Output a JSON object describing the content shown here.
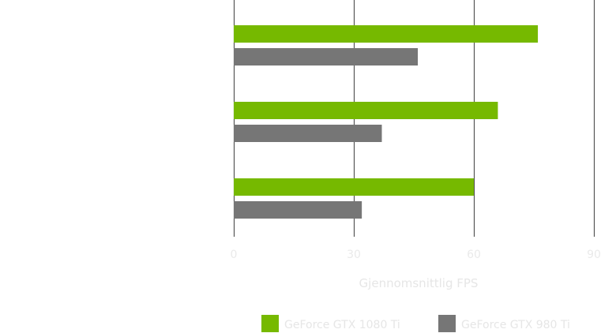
{
  "chart_data": {
    "type": "bar",
    "orientation": "horizontal",
    "title": "",
    "xlabel": "Gjennomsnittlig FPS",
    "ylabel": "",
    "xlim": [
      0,
      90
    ],
    "x_ticks": [
      0,
      30,
      60,
      90
    ],
    "x_tick_labels": [
      "0",
      "30",
      "60",
      "90"
    ],
    "grid": true,
    "legend_placement": "bottom",
    "categories": [
      "",
      "",
      ""
    ],
    "series": [
      {
        "name": "GeForce GTX 1080 Ti",
        "color": "#76b900",
        "values": [
          76,
          66,
          60
        ]
      },
      {
        "name": "GeForce GTX 980 Ti",
        "color": "#767676",
        "values": [
          46,
          37,
          32
        ]
      }
    ],
    "colors": {
      "grid": "#555555",
      "tick_text": "#eaeaea",
      "axis_title_text": "#e6e6e6",
      "legend_text": "#e6e6e6"
    }
  }
}
